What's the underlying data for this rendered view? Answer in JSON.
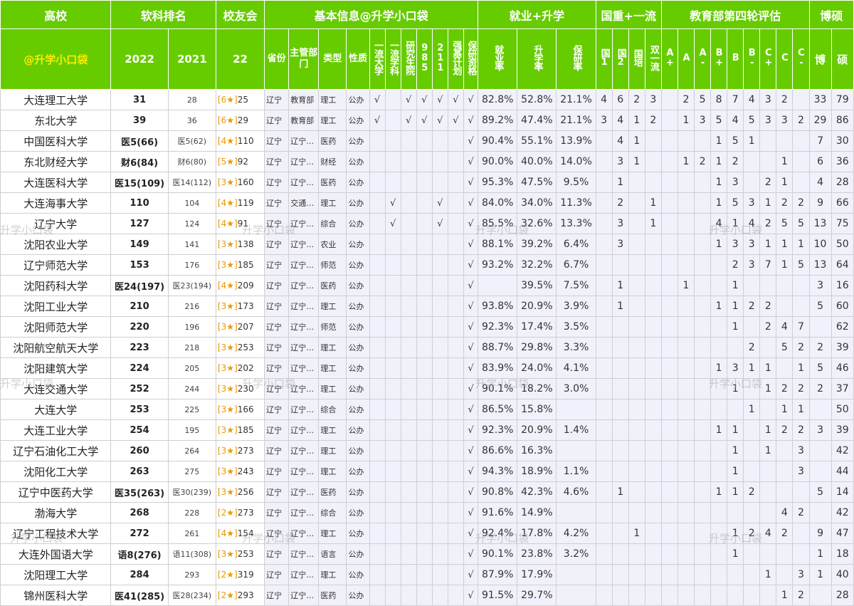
{
  "header": {
    "top": {
      "school": "高校",
      "ranking": "软科排名",
      "alumni": "校友会",
      "basic": "基本信息@升学小口袋",
      "employ": "就业+升学",
      "national": "国重+一流",
      "moe": "教育部第四轮评估",
      "phd": "博硕"
    },
    "sub": {
      "brand": "@升学小口袋",
      "y2022": "2022",
      "y2021": "2021",
      "alumni_year": "22",
      "province": "省份",
      "dept": "主管部门",
      "type": "类型",
      "nature": "性质",
      "flags": [
        "一流大学",
        "一流学科",
        "研究生院",
        "985",
        "211",
        "强基计划",
        "保研资格"
      ],
      "rates": [
        "就业率",
        "升学率",
        "保研率"
      ],
      "nat": [
        "国1",
        "国2",
        "国培",
        "双一流"
      ],
      "grades": [
        "A+",
        "A",
        "A-",
        "B+",
        "B",
        "B-",
        "C+",
        "C",
        "C-"
      ],
      "phd": "博",
      "master": "硕"
    }
  },
  "rows": [
    {
      "name": "大连理工大学",
      "r2022": "31",
      "r2021": "28",
      "alumni_stars": "[6★]",
      "alumni_rank": "25",
      "province": "辽宁",
      "dept": "教育部",
      "type": "理工",
      "nature": "公办",
      "flags": [
        "√",
        "",
        "√",
        "√",
        "√",
        "√",
        "√"
      ],
      "employ": "82.8%",
      "further": "52.8%",
      "baoyan": "21.1%",
      "nat": [
        "4",
        "6",
        "2",
        "3"
      ],
      "grades": [
        "",
        "2",
        "5",
        "8",
        "7",
        "4",
        "3",
        "2",
        ""
      ],
      "phd": "33",
      "master": "79"
    },
    {
      "name": "东北大学",
      "r2022": "39",
      "r2021": "36",
      "alumni_stars": "[6★]",
      "alumni_rank": "29",
      "province": "辽宁",
      "dept": "教育部",
      "type": "理工",
      "nature": "公办",
      "flags": [
        "√",
        "",
        "√",
        "√",
        "√",
        "√",
        "√"
      ],
      "employ": "89.2%",
      "further": "47.4%",
      "baoyan": "21.1%",
      "nat": [
        "3",
        "4",
        "1",
        "2"
      ],
      "grades": [
        "",
        "1",
        "3",
        "5",
        "4",
        "5",
        "3",
        "3",
        "2"
      ],
      "phd": "29",
      "master": "86"
    },
    {
      "name": "中国医科大学",
      "r2022": "医5(66)",
      "r2021": "医5(62)",
      "alumni_stars": "[4★]",
      "alumni_rank": "110",
      "province": "辽宁",
      "dept": "辽宁…",
      "type": "医药",
      "nature": "公办",
      "flags": [
        "",
        "",
        "",
        "",
        "",
        "",
        "√"
      ],
      "employ": "90.4%",
      "further": "55.1%",
      "baoyan": "13.9%",
      "nat": [
        "",
        "4",
        "1",
        ""
      ],
      "grades": [
        "",
        "",
        "",
        "1",
        "5",
        "1",
        "",
        "",
        ""
      ],
      "phd": "7",
      "master": "30"
    },
    {
      "name": "东北财经大学",
      "r2022": "财6(84)",
      "r2021": "财6(80)",
      "alumni_stars": "[5★]",
      "alumni_rank": "92",
      "province": "辽宁",
      "dept": "辽宁…",
      "type": "财经",
      "nature": "公办",
      "flags": [
        "",
        "",
        "",
        "",
        "",
        "",
        "√"
      ],
      "employ": "90.0%",
      "further": "40.0%",
      "baoyan": "14.0%",
      "nat": [
        "",
        "3",
        "1",
        ""
      ],
      "grades": [
        "",
        "1",
        "2",
        "1",
        "2",
        "",
        "",
        "1",
        ""
      ],
      "phd": "6",
      "master": "36"
    },
    {
      "name": "大连医科大学",
      "r2022": "医15(109)",
      "r2021": "医14(112)",
      "alumni_stars": "[3★]",
      "alumni_rank": "160",
      "province": "辽宁",
      "dept": "辽宁…",
      "type": "医药",
      "nature": "公办",
      "flags": [
        "",
        "",
        "",
        "",
        "",
        "",
        "√"
      ],
      "employ": "95.3%",
      "further": "47.5%",
      "baoyan": "9.5%",
      "nat": [
        "",
        "1",
        "",
        ""
      ],
      "grades": [
        "",
        "",
        "",
        "1",
        "3",
        "",
        "2",
        "1",
        ""
      ],
      "phd": "4",
      "master": "28"
    },
    {
      "name": "大连海事大学",
      "r2022": "110",
      "r2021": "104",
      "alumni_stars": "[4★]",
      "alumni_rank": "119",
      "province": "辽宁",
      "dept": "交通…",
      "type": "理工",
      "nature": "公办",
      "flags": [
        "",
        "√",
        "",
        "",
        "√",
        "",
        "√"
      ],
      "employ": "84.0%",
      "further": "34.0%",
      "baoyan": "11.3%",
      "nat": [
        "",
        "2",
        "",
        "1"
      ],
      "grades": [
        "",
        "",
        "",
        "1",
        "5",
        "3",
        "1",
        "2",
        "2"
      ],
      "phd": "9",
      "master": "66"
    },
    {
      "name": "辽宁大学",
      "r2022": "127",
      "r2021": "124",
      "alumni_stars": "[4★]",
      "alumni_rank": "91",
      "province": "辽宁",
      "dept": "辽宁…",
      "type": "综合",
      "nature": "公办",
      "flags": [
        "",
        "√",
        "",
        "",
        "√",
        "",
        "√"
      ],
      "employ": "85.5%",
      "further": "32.6%",
      "baoyan": "13.3%",
      "nat": [
        "",
        "3",
        "",
        "1"
      ],
      "grades": [
        "",
        "",
        "",
        "4",
        "1",
        "4",
        "2",
        "5",
        "5"
      ],
      "phd": "13",
      "master": "75"
    },
    {
      "name": "沈阳农业大学",
      "r2022": "149",
      "r2021": "141",
      "alumni_stars": "[3★]",
      "alumni_rank": "138",
      "province": "辽宁",
      "dept": "辽宁…",
      "type": "农业",
      "nature": "公办",
      "flags": [
        "",
        "",
        "",
        "",
        "",
        "",
        "√"
      ],
      "employ": "88.1%",
      "further": "39.2%",
      "baoyan": "6.4%",
      "nat": [
        "",
        "3",
        "",
        ""
      ],
      "grades": [
        "",
        "",
        "",
        "1",
        "3",
        "3",
        "1",
        "1",
        "1"
      ],
      "phd": "10",
      "master": "50"
    },
    {
      "name": "辽宁师范大学",
      "r2022": "153",
      "r2021": "176",
      "alumni_stars": "[3★]",
      "alumni_rank": "185",
      "province": "辽宁",
      "dept": "辽宁…",
      "type": "师范",
      "nature": "公办",
      "flags": [
        "",
        "",
        "",
        "",
        "",
        "",
        "√"
      ],
      "employ": "93.2%",
      "further": "32.2%",
      "baoyan": "6.7%",
      "nat": [
        "",
        "",
        "",
        ""
      ],
      "grades": [
        "",
        "",
        "",
        "",
        "2",
        "3",
        "7",
        "1",
        "5"
      ],
      "phd": "13",
      "master": "64"
    },
    {
      "name": "沈阳药科大学",
      "r2022": "医24(197)",
      "r2021": "医23(194)",
      "alumni_stars": "[4★]",
      "alumni_rank": "209",
      "province": "辽宁",
      "dept": "辽宁…",
      "type": "医药",
      "nature": "公办",
      "flags": [
        "",
        "",
        "",
        "",
        "",
        "",
        "√"
      ],
      "employ": "",
      "further": "39.5%",
      "baoyan": "7.5%",
      "nat": [
        "",
        "1",
        "",
        ""
      ],
      "grades": [
        "",
        "1",
        "",
        "",
        "1",
        "",
        "",
        "",
        ""
      ],
      "phd": "3",
      "master": "16"
    },
    {
      "name": "沈阳工业大学",
      "r2022": "210",
      "r2021": "216",
      "alumni_stars": "[3★]",
      "alumni_rank": "173",
      "province": "辽宁",
      "dept": "辽宁…",
      "type": "理工",
      "nature": "公办",
      "flags": [
        "",
        "",
        "",
        "",
        "",
        "",
        "√"
      ],
      "employ": "93.8%",
      "further": "20.9%",
      "baoyan": "3.9%",
      "nat": [
        "",
        "1",
        "",
        ""
      ],
      "grades": [
        "",
        "",
        "",
        "1",
        "1",
        "2",
        "2",
        "",
        ""
      ],
      "phd": "5",
      "master": "60"
    },
    {
      "name": "沈阳师范大学",
      "r2022": "220",
      "r2021": "196",
      "alumni_stars": "[3★]",
      "alumni_rank": "207",
      "province": "辽宁",
      "dept": "辽宁…",
      "type": "师范",
      "nature": "公办",
      "flags": [
        "",
        "",
        "",
        "",
        "",
        "",
        "√"
      ],
      "employ": "92.3%",
      "further": "17.4%",
      "baoyan": "3.5%",
      "nat": [
        "",
        "",
        "",
        ""
      ],
      "grades": [
        "",
        "",
        "",
        "",
        "1",
        "",
        "2",
        "4",
        "7"
      ],
      "phd": "",
      "master": "62"
    },
    {
      "name": "沈阳航空航天大学",
      "r2022": "223",
      "r2021": "218",
      "alumni_stars": "[3★]",
      "alumni_rank": "253",
      "province": "辽宁",
      "dept": "辽宁…",
      "type": "理工",
      "nature": "公办",
      "flags": [
        "",
        "",
        "",
        "",
        "",
        "",
        "√"
      ],
      "employ": "88.7%",
      "further": "29.8%",
      "baoyan": "3.3%",
      "nat": [
        "",
        "",
        "",
        ""
      ],
      "grades": [
        "",
        "",
        "",
        "",
        "",
        "2",
        "",
        "5",
        "2"
      ],
      "phd": "2",
      "master": "39"
    },
    {
      "name": "沈阳建筑大学",
      "r2022": "224",
      "r2021": "205",
      "alumni_stars": "[3★]",
      "alumni_rank": "202",
      "province": "辽宁",
      "dept": "辽宁…",
      "type": "理工",
      "nature": "公办",
      "flags": [
        "",
        "",
        "",
        "",
        "",
        "",
        "√"
      ],
      "employ": "83.9%",
      "further": "24.0%",
      "baoyan": "4.1%",
      "nat": [
        "",
        "",
        "",
        ""
      ],
      "grades": [
        "",
        "",
        "",
        "1",
        "3",
        "1",
        "1",
        "",
        "1"
      ],
      "phd": "5",
      "master": "46"
    },
    {
      "name": "大连交通大学",
      "r2022": "252",
      "r2021": "244",
      "alumni_stars": "[3★]",
      "alumni_rank": "230",
      "province": "辽宁",
      "dept": "辽宁…",
      "type": "理工",
      "nature": "公办",
      "flags": [
        "",
        "",
        "",
        "",
        "",
        "",
        "√"
      ],
      "employ": "90.1%",
      "further": "18.2%",
      "baoyan": "3.0%",
      "nat": [
        "",
        "",
        "",
        ""
      ],
      "grades": [
        "",
        "",
        "",
        "",
        "1",
        "",
        "1",
        "2",
        "2"
      ],
      "phd": "2",
      "master": "37"
    },
    {
      "name": "大连大学",
      "r2022": "253",
      "r2021": "225",
      "alumni_stars": "[3★]",
      "alumni_rank": "166",
      "province": "辽宁",
      "dept": "辽宁…",
      "type": "综合",
      "nature": "公办",
      "flags": [
        "",
        "",
        "",
        "",
        "",
        "",
        "√"
      ],
      "employ": "86.5%",
      "further": "15.8%",
      "baoyan": "",
      "nat": [
        "",
        "",
        "",
        ""
      ],
      "grades": [
        "",
        "",
        "",
        "",
        "",
        "1",
        "",
        "1",
        "1"
      ],
      "phd": "",
      "master": "50"
    },
    {
      "name": "大连工业大学",
      "r2022": "254",
      "r2021": "195",
      "alumni_stars": "[3★]",
      "alumni_rank": "185",
      "province": "辽宁",
      "dept": "辽宁…",
      "type": "理工",
      "nature": "公办",
      "flags": [
        "",
        "",
        "",
        "",
        "",
        "",
        "√"
      ],
      "employ": "92.3%",
      "further": "20.9%",
      "baoyan": "1.4%",
      "nat": [
        "",
        "",
        "",
        ""
      ],
      "grades": [
        "",
        "",
        "",
        "1",
        "1",
        "",
        "1",
        "2",
        "2"
      ],
      "phd": "3",
      "master": "39"
    },
    {
      "name": "辽宁石油化工大学",
      "r2022": "260",
      "r2021": "264",
      "alumni_stars": "[3★]",
      "alumni_rank": "273",
      "province": "辽宁",
      "dept": "辽宁…",
      "type": "理工",
      "nature": "公办",
      "flags": [
        "",
        "",
        "",
        "",
        "",
        "",
        "√"
      ],
      "employ": "86.6%",
      "further": "16.3%",
      "baoyan": "",
      "nat": [
        "",
        "",
        "",
        ""
      ],
      "grades": [
        "",
        "",
        "",
        "",
        "1",
        "",
        "1",
        "",
        "3"
      ],
      "phd": "",
      "master": "42"
    },
    {
      "name": "沈阳化工大学",
      "r2022": "263",
      "r2021": "275",
      "alumni_stars": "[3★]",
      "alumni_rank": "243",
      "province": "辽宁",
      "dept": "辽宁…",
      "type": "理工",
      "nature": "公办",
      "flags": [
        "",
        "",
        "",
        "",
        "",
        "",
        "√"
      ],
      "employ": "94.3%",
      "further": "18.9%",
      "baoyan": "1.1%",
      "nat": [
        "",
        "",
        "",
        ""
      ],
      "grades": [
        "",
        "",
        "",
        "",
        "1",
        "",
        "",
        "",
        "3"
      ],
      "phd": "",
      "master": "44"
    },
    {
      "name": "辽宁中医药大学",
      "r2022": "医35(263)",
      "r2021": "医30(239)",
      "alumni_stars": "[3★]",
      "alumni_rank": "256",
      "province": "辽宁",
      "dept": "辽宁…",
      "type": "医药",
      "nature": "公办",
      "flags": [
        "",
        "",
        "",
        "",
        "",
        "",
        "√"
      ],
      "employ": "90.8%",
      "further": "42.3%",
      "baoyan": "4.6%",
      "nat": [
        "",
        "1",
        "",
        ""
      ],
      "grades": [
        "",
        "",
        "",
        "1",
        "1",
        "2",
        "",
        "",
        ""
      ],
      "phd": "5",
      "master": "14"
    },
    {
      "name": "渤海大学",
      "r2022": "268",
      "r2021": "228",
      "alumni_stars": "[2★]",
      "alumni_rank": "273",
      "province": "辽宁",
      "dept": "辽宁…",
      "type": "综合",
      "nature": "公办",
      "flags": [
        "",
        "",
        "",
        "",
        "",
        "",
        "√"
      ],
      "employ": "91.6%",
      "further": "14.9%",
      "baoyan": "",
      "nat": [
        "",
        "",
        "",
        ""
      ],
      "grades": [
        "",
        "",
        "",
        "",
        "",
        "",
        "",
        "4",
        "2"
      ],
      "phd": "",
      "master": "42"
    },
    {
      "name": "辽宁工程技术大学",
      "r2022": "272",
      "r2021": "261",
      "alumni_stars": "[4★]",
      "alumni_rank": "154",
      "province": "辽宁",
      "dept": "辽宁…",
      "type": "理工",
      "nature": "公办",
      "flags": [
        "",
        "",
        "",
        "",
        "",
        "",
        "√"
      ],
      "employ": "92.4%",
      "further": "17.8%",
      "baoyan": "4.2%",
      "nat": [
        "",
        "",
        "1",
        ""
      ],
      "grades": [
        "",
        "",
        "",
        "",
        "1",
        "2",
        "4",
        "2",
        ""
      ],
      "phd": "9",
      "master": "47"
    },
    {
      "name": "大连外国语大学",
      "r2022": "语8(276)",
      "r2021": "语11(308)",
      "alumni_stars": "[3★]",
      "alumni_rank": "253",
      "province": "辽宁",
      "dept": "辽宁…",
      "type": "语言",
      "nature": "公办",
      "flags": [
        "",
        "",
        "",
        "",
        "",
        "",
        "√"
      ],
      "employ": "90.1%",
      "further": "23.8%",
      "baoyan": "3.2%",
      "nat": [
        "",
        "",
        "",
        ""
      ],
      "grades": [
        "",
        "",
        "",
        "",
        "1",
        "",
        "",
        "",
        ""
      ],
      "phd": "1",
      "master": "18"
    },
    {
      "name": "沈阳理工大学",
      "r2022": "284",
      "r2021": "293",
      "alumni_stars": "[2★]",
      "alumni_rank": "319",
      "province": "辽宁",
      "dept": "辽宁…",
      "type": "理工",
      "nature": "公办",
      "flags": [
        "",
        "",
        "",
        "",
        "",
        "",
        "√"
      ],
      "employ": "87.9%",
      "further": "17.9%",
      "baoyan": "",
      "nat": [
        "",
        "",
        "",
        ""
      ],
      "grades": [
        "",
        "",
        "",
        "",
        "",
        "",
        "1",
        "",
        "3"
      ],
      "phd": "1",
      "master": "40"
    },
    {
      "name": "锦州医科大学",
      "r2022": "医41(285)",
      "r2021": "医28(234)",
      "alumni_stars": "[2★]",
      "alumni_rank": "293",
      "province": "辽宁",
      "dept": "辽宁…",
      "type": "医药",
      "nature": "公办",
      "flags": [
        "",
        "",
        "",
        "",
        "",
        "",
        "√"
      ],
      "employ": "91.5%",
      "further": "29.7%",
      "baoyan": "",
      "nat": [
        "",
        "",
        "",
        ""
      ],
      "grades": [
        "",
        "",
        "",
        "",
        "",
        "",
        "",
        "1",
        "2"
      ],
      "phd": "",
      "master": "28"
    }
  ],
  "watermark": "升学小口袋"
}
